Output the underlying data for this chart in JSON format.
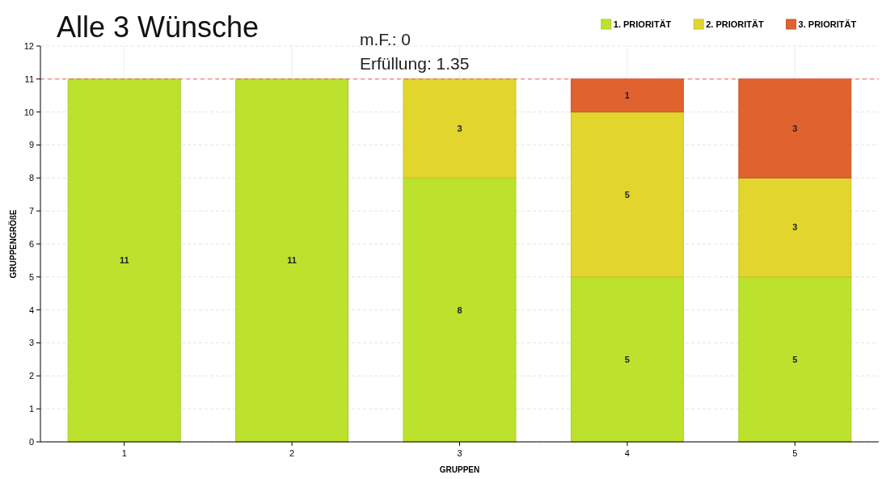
{
  "chart_data": {
    "type": "bar",
    "title": "Alle 3 Wünsche",
    "xlabel": "GRUPPEN",
    "ylabel": "GRUPPENGRÖßE",
    "annotations": [
      "m.F.: 0",
      "Erfüllung: 1.35"
    ],
    "categories": [
      "1",
      "2",
      "3",
      "4",
      "5"
    ],
    "series": [
      {
        "name": "1. PRIORITÄT",
        "color": "#bde22e",
        "values": [
          11,
          11,
          8,
          5,
          5
        ]
      },
      {
        "name": "2. PRIORITÄT",
        "color": "#e2d62e",
        "values": [
          null,
          null,
          3,
          5,
          3
        ]
      },
      {
        "name": "3. PRIORITÄT",
        "color": "#e0622e",
        "values": [
          null,
          null,
          null,
          1,
          3
        ]
      }
    ],
    "stacked": true,
    "data_labels": true,
    "ylim": [
      0,
      12
    ],
    "yticks": [
      0,
      1,
      2,
      3,
      4,
      5,
      6,
      7,
      8,
      9,
      10,
      11,
      12
    ],
    "grid": true,
    "legend": "top right",
    "ref_lines": [
      {
        "axis": "y",
        "value": 11,
        "color": "#f06060",
        "line_style": "dashed"
      }
    ]
  }
}
